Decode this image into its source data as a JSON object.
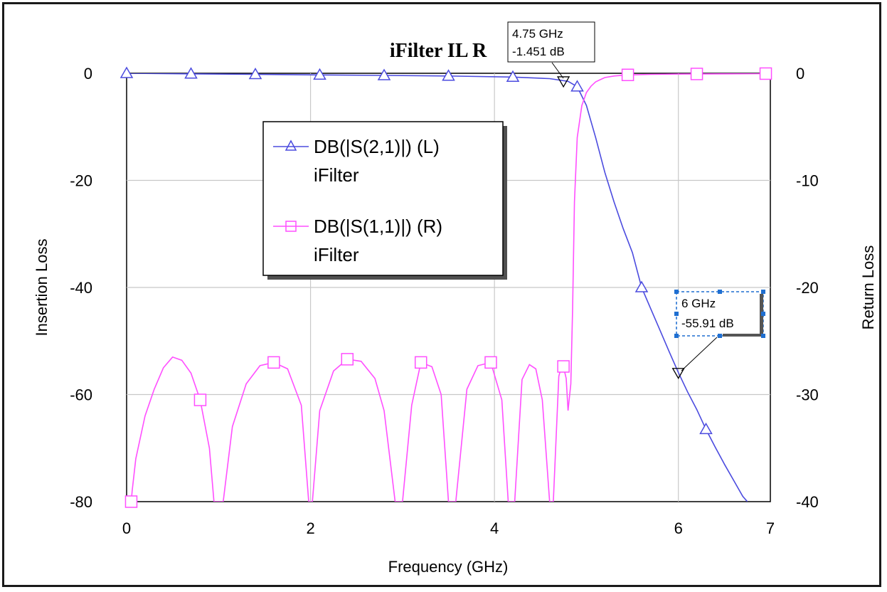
{
  "chart_data": {
    "type": "line",
    "title": "iFilter IL R",
    "xlabel": "Frequency (GHz)",
    "ylabel_left": "Insertion Loss",
    "ylabel_right": "Return Loss",
    "xlim": [
      0,
      7
    ],
    "ylim_left": [
      -80,
      0
    ],
    "ylim_right": [
      -40,
      0
    ],
    "x_ticks": [
      "0",
      "2",
      "4",
      "6",
      "7"
    ],
    "y_ticks_left": [
      "0",
      "-20",
      "-40",
      "-60",
      "-80"
    ],
    "y_ticks_right": [
      "0",
      "-10",
      "-20",
      "-30",
      "-40"
    ],
    "grid": true,
    "legend_position": "upper-left inside plot",
    "series": [
      {
        "name": "DB(|S(2,1)|) (L)",
        "name_line2": "iFilter",
        "axis": "left",
        "color": "#4b4bdf",
        "marker": "triangle",
        "x": [
          0,
          0.7,
          1.4,
          2.1,
          2.8,
          3.5,
          4.2,
          4.6,
          4.8,
          4.9,
          5.0,
          5.1,
          5.2,
          5.3,
          5.4,
          5.5,
          5.6,
          5.7,
          5.8,
          5.9,
          6.0,
          6.1,
          6.2,
          6.3,
          6.4,
          6.5,
          6.6,
          6.7,
          6.75
        ],
        "y": [
          0.0,
          -0.1,
          -0.2,
          -0.3,
          -0.4,
          -0.5,
          -0.7,
          -1.0,
          -1.5,
          -2.5,
          -6.0,
          -12.0,
          -18.5,
          -24.0,
          -29.0,
          -33.5,
          -40.0,
          -44.0,
          -48.0,
          -52.0,
          -55.9,
          -59.5,
          -62.8,
          -66.5,
          -69.8,
          -73.0,
          -76.0,
          -79.0,
          -80.0
        ],
        "marker_x": [
          0,
          0.7,
          1.4,
          2.1,
          2.8,
          3.5,
          4.2,
          4.9,
          5.6,
          6.3
        ]
      },
      {
        "name": "DB(|S(1,1)|) (R)",
        "name_line2": "iFilter",
        "axis": "right",
        "color": "#ff4fff",
        "marker": "square",
        "x": [
          0.05,
          0.06,
          0.1,
          0.2,
          0.3,
          0.4,
          0.5,
          0.6,
          0.7,
          0.8,
          0.9,
          0.95,
          1.05,
          1.15,
          1.3,
          1.45,
          1.6,
          1.75,
          1.9,
          1.98,
          2.02,
          2.1,
          2.25,
          2.4,
          2.55,
          2.7,
          2.8,
          2.92,
          3.0,
          3.1,
          3.2,
          3.32,
          3.42,
          3.5,
          3.58,
          3.7,
          3.82,
          3.96,
          4.08,
          4.15,
          4.22,
          4.3,
          4.38,
          4.45,
          4.52,
          4.6,
          4.64,
          4.7,
          4.74,
          4.78,
          4.8,
          4.83,
          4.85,
          4.87,
          4.9,
          4.95,
          5.0,
          5.05,
          5.1,
          5.15,
          5.2,
          5.3,
          5.45,
          5.7,
          6.0,
          6.5,
          6.95
        ],
        "y": [
          -40.0,
          -39.0,
          -36.0,
          -32.0,
          -29.5,
          -27.5,
          -26.5,
          -26.8,
          -28.0,
          -30.5,
          -35.0,
          -40.0,
          -40.0,
          -33.0,
          -29.0,
          -27.3,
          -27.0,
          -27.6,
          -31.0,
          -40.0,
          -40.0,
          -31.5,
          -27.8,
          -26.7,
          -26.9,
          -28.5,
          -31.5,
          -40.0,
          -40.0,
          -31.0,
          -27.0,
          -27.4,
          -30.0,
          -40.0,
          -40.0,
          -29.5,
          -27.3,
          -27.0,
          -30.5,
          -40.0,
          -40.0,
          -28.6,
          -27.2,
          -27.6,
          -30.5,
          -40.0,
          -40.0,
          -28.3,
          -27.0,
          -28.5,
          -31.5,
          -29.0,
          -22.0,
          -12.0,
          -6.0,
          -3.0,
          -1.8,
          -1.2,
          -0.8,
          -0.6,
          -0.4,
          -0.25,
          -0.15,
          -0.1,
          -0.07,
          -0.05,
          -0.03
        ],
        "marker_x": [
          0.05,
          0.8,
          1.6,
          2.4,
          3.2,
          3.96,
          4.75,
          5.45,
          6.2,
          6.95
        ]
      }
    ],
    "annotations": [
      {
        "series": 0,
        "x": 4.75,
        "y": -1.451,
        "line1": "4.75 GHz",
        "line2": "-1.451 dB"
      },
      {
        "series": 0,
        "x": 6.0,
        "y": -55.91,
        "line1": "6 GHz",
        "line2": "-55.91 dB"
      }
    ]
  }
}
